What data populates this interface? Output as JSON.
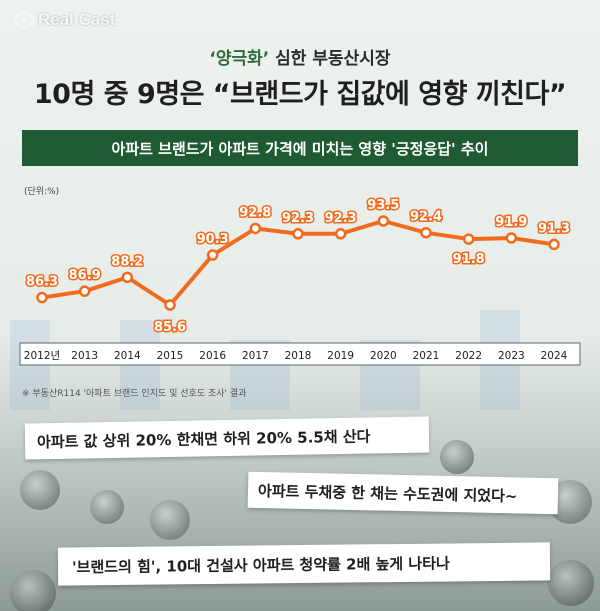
{
  "brand": {
    "name": "Real Cast",
    "icon": "broadcast-icon"
  },
  "header": {
    "title_highlight": "‘양극화’",
    "title_rest": " 심한 부동산시장",
    "headline": "10명 중 9명은 “브랜드가 집값에 영향 끼친다”"
  },
  "banner": {
    "text": "아파트 브랜드가 아파트 가격에 미치는 영향 '긍정응답' 추이"
  },
  "colors": {
    "line": "#f26b1d",
    "banner": "#1e5a32",
    "highlight": "#2d6b3a"
  },
  "chart_data": {
    "type": "line",
    "unit_label": "(단위:%)",
    "categories": [
      "2012년",
      "2013",
      "2014",
      "2015",
      "2016",
      "2017",
      "2018",
      "2019",
      "2020",
      "2021",
      "2022",
      "2023",
      "2024"
    ],
    "values": [
      86.3,
      86.9,
      88.2,
      85.6,
      90.3,
      92.8,
      92.3,
      92.3,
      93.5,
      92.4,
      91.8,
      91.9,
      91.3
    ],
    "grid": false
  },
  "source": "※ 부동산R114 '아파트 브랜드 인지도 및 선호도 조사' 결과",
  "cards": [
    "아파트 값 상위 20% 한채면 하위 20% 5.5채 산다",
    "아파트 두채중 한 채는 수도권에 지었다~",
    "'브랜드의 힘', 10대 건설사 아파트 청약률 2배 높게 나타나"
  ]
}
